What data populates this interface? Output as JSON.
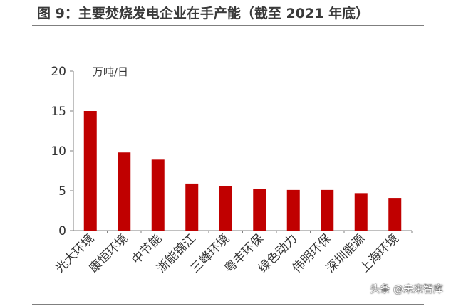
{
  "title": "图 9：主要焚烧发电企业在手产能（截至 2021 年底）",
  "watermark": "头条 @未来智库",
  "chart_data": {
    "type": "bar",
    "title": "图 9：主要焚烧发电企业在手产能（截至 2021 年底）",
    "ylabel": "万吨/日",
    "xlabel": "",
    "ylim": [
      0,
      20
    ],
    "yticks": [
      0,
      5,
      10,
      15,
      20
    ],
    "grid": false,
    "categories": [
      "光大环境",
      "康恒环境",
      "中节能",
      "浙能锦江",
      "三峰环境",
      "粤丰环保",
      "绿色动力",
      "伟明环保",
      "深圳能源",
      "上海环境"
    ],
    "values": [
      15.0,
      9.8,
      8.9,
      5.9,
      5.6,
      5.2,
      5.1,
      5.1,
      4.7,
      4.1
    ],
    "bar_color": "#c00000"
  }
}
